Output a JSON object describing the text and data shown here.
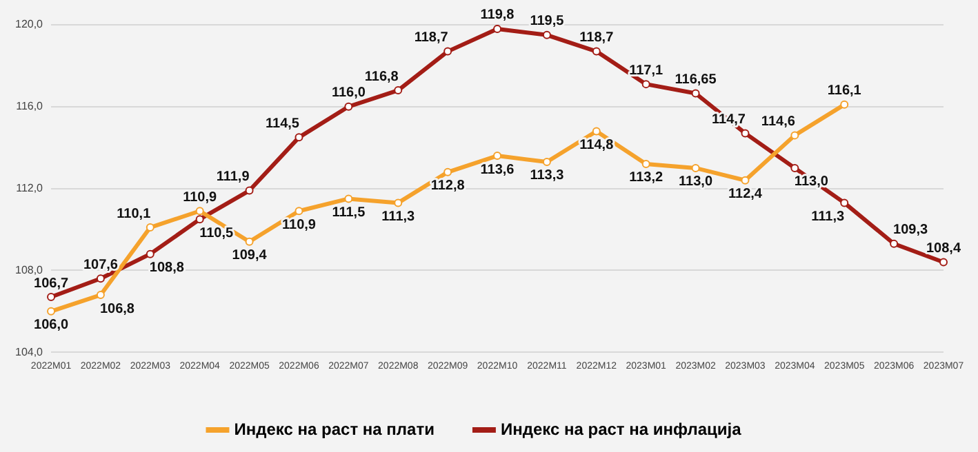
{
  "chart_data": {
    "type": "line",
    "categories": [
      "2022M01",
      "2022M02",
      "2022M03",
      "2022M04",
      "2022M05",
      "2022M06",
      "2022M07",
      "2022M08",
      "2022M09",
      "2022M10",
      "2022M11",
      "2022M12",
      "2023M01",
      "2023M02",
      "2023M03",
      "2023M04",
      "2023M05",
      "2023M06",
      "2023M07"
    ],
    "series": [
      {
        "name": "Индекс на раст на плати",
        "color": "#f5a22c",
        "values": [
          106.0,
          106.8,
          110.1,
          110.9,
          109.4,
          110.9,
          111.5,
          111.3,
          112.8,
          113.6,
          113.3,
          114.8,
          113.2,
          113.0,
          112.4,
          114.6,
          116.1,
          null,
          null
        ],
        "value_labels": [
          "106,0",
          "106,8",
          "110,1",
          "110,9",
          "109,4",
          "110,9",
          "111,5",
          "111,3",
          "112,8",
          "113,6",
          "113,3",
          "114,8",
          "113,2",
          "113,0",
          "112,4",
          "114,6",
          "116,1",
          null,
          null
        ]
      },
      {
        "name": "Индекс на раст на инфлација",
        "color": "#a31d16",
        "values": [
          106.7,
          107.6,
          108.8,
          110.5,
          111.9,
          114.5,
          116.0,
          116.8,
          118.7,
          119.8,
          119.5,
          118.7,
          117.1,
          116.65,
          114.7,
          113.0,
          111.3,
          109.3,
          108.4
        ],
        "value_labels": [
          "106,7",
          "107,6",
          "108,8",
          "110,5",
          "111,9",
          "114,5",
          "116,0",
          "116,8",
          "118,7",
          "119,8",
          "119,5",
          "118,7",
          "117,1",
          "116,65",
          "114,7",
          "113,0",
          "111,3",
          "109,3",
          "108,4"
        ]
      }
    ],
    "ylim": [
      104,
      120
    ],
    "yticks": [
      {
        "value": 104,
        "label": "104,0"
      },
      {
        "value": 108,
        "label": "108,0"
      },
      {
        "value": 112,
        "label": "112,0"
      },
      {
        "value": 116,
        "label": "116,0"
      },
      {
        "value": 120,
        "label": "120,0"
      }
    ],
    "grid": "y",
    "legend": "bottom",
    "marker": "circle",
    "line_style": "solid"
  }
}
